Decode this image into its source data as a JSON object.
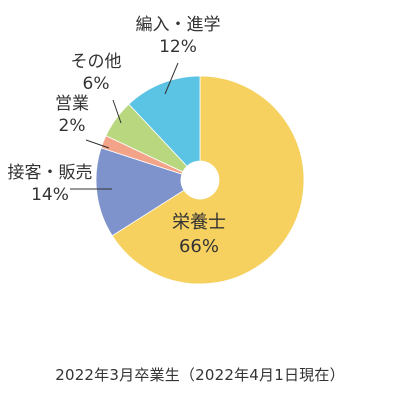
{
  "chart_data": {
    "type": "pie",
    "donut": true,
    "start": "top, clockwise",
    "slices": [
      {
        "name": "栄養士",
        "value": 66,
        "pct": "66%",
        "color": "#F6D160"
      },
      {
        "name": "接客・販売",
        "value": 14,
        "pct": "14%",
        "color": "#7E92CB"
      },
      {
        "name": "営業",
        "value": 2,
        "pct": "2%",
        "color": "#F2A388"
      },
      {
        "name": "その他",
        "value": 6,
        "pct": "6%",
        "color": "#B8D77F"
      },
      {
        "name": "編入・進学",
        "value": 12,
        "pct": "12%",
        "color": "#5BC3E3"
      }
    ]
  },
  "caption": "2022年3月卒業生（2022年4月1日現在）"
}
